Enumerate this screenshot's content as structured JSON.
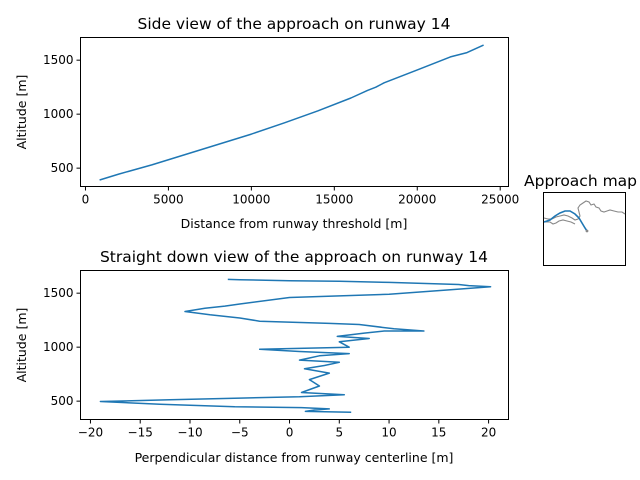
{
  "chart_data": [
    {
      "type": "line",
      "title": "Side view of the approach on runway 14",
      "xlabel": "Distance from runway threshold [m]",
      "ylabel": "Altitude [m]",
      "xlim": [
        -300,
        25500
      ],
      "ylim": [
        330,
        1710
      ],
      "xticks": [
        0,
        5000,
        10000,
        15000,
        20000,
        25000
      ],
      "yticks": [
        500,
        1000,
        1500
      ],
      "grid": false,
      "series": [
        {
          "color": "#1f77b4",
          "x": [
            850,
            2000,
            4000,
            6000,
            8000,
            10000,
            12000,
            14000,
            16000,
            17000,
            17500,
            18000,
            20000,
            22000,
            23000,
            24000
          ],
          "y": [
            390,
            445,
            530,
            625,
            720,
            815,
            920,
            1030,
            1150,
            1220,
            1250,
            1290,
            1410,
            1530,
            1570,
            1640
          ]
        }
      ]
    },
    {
      "type": "line",
      "title": "Straight down view of the approach on runway 14",
      "xlabel": "Perpendicular distance from runway centerline [m]",
      "ylabel": "Altitude [m]",
      "xlim": [
        -21,
        22
      ],
      "ylim": [
        330,
        1710
      ],
      "xticks": [
        -20,
        -15,
        -10,
        -5,
        0,
        5,
        10,
        15,
        20
      ],
      "yticks": [
        500,
        1000,
        1500
      ],
      "grid": false,
      "series": [
        {
          "color": "#1f77b4",
          "x": [
            6.2,
            1.6,
            2.5,
            4.0,
            1.2,
            -5.5,
            -13.0,
            -19.0,
            -12.0,
            -5.0,
            1.0,
            5.5,
            1.2,
            3.0,
            2.0,
            4.0,
            1.5,
            3.5,
            5.0,
            1.0,
            2.0,
            3.0,
            6.0,
            1.0,
            -3.0,
            6.0,
            5.0,
            8.0,
            4.8,
            7.5,
            9.5,
            13.5,
            10.5,
            7.0,
            4.0,
            -3.0,
            -5.0,
            -8.0,
            -10.5,
            -8.5,
            -6.5,
            -5.0,
            0.0,
            10.0,
            16.0,
            20.2,
            18.0,
            17.0,
            10.0,
            5.0,
            0.0,
            -5.0,
            -6.2
          ],
          "y": [
            398,
            405,
            418,
            428,
            440,
            448,
            472,
            497,
            512,
            528,
            540,
            560,
            580,
            640,
            700,
            760,
            800,
            830,
            860,
            880,
            900,
            920,
            940,
            960,
            980,
            1000,
            1050,
            1080,
            1100,
            1130,
            1150,
            1150,
            1170,
            1210,
            1220,
            1240,
            1270,
            1300,
            1330,
            1360,
            1380,
            1400,
            1460,
            1490,
            1530,
            1560,
            1570,
            1580,
            1600,
            1610,
            1615,
            1625,
            1628
          ]
        }
      ]
    }
  ],
  "map": {
    "title": "Approach map",
    "track_color": "#1f77b4",
    "coast_color": "#888888"
  }
}
